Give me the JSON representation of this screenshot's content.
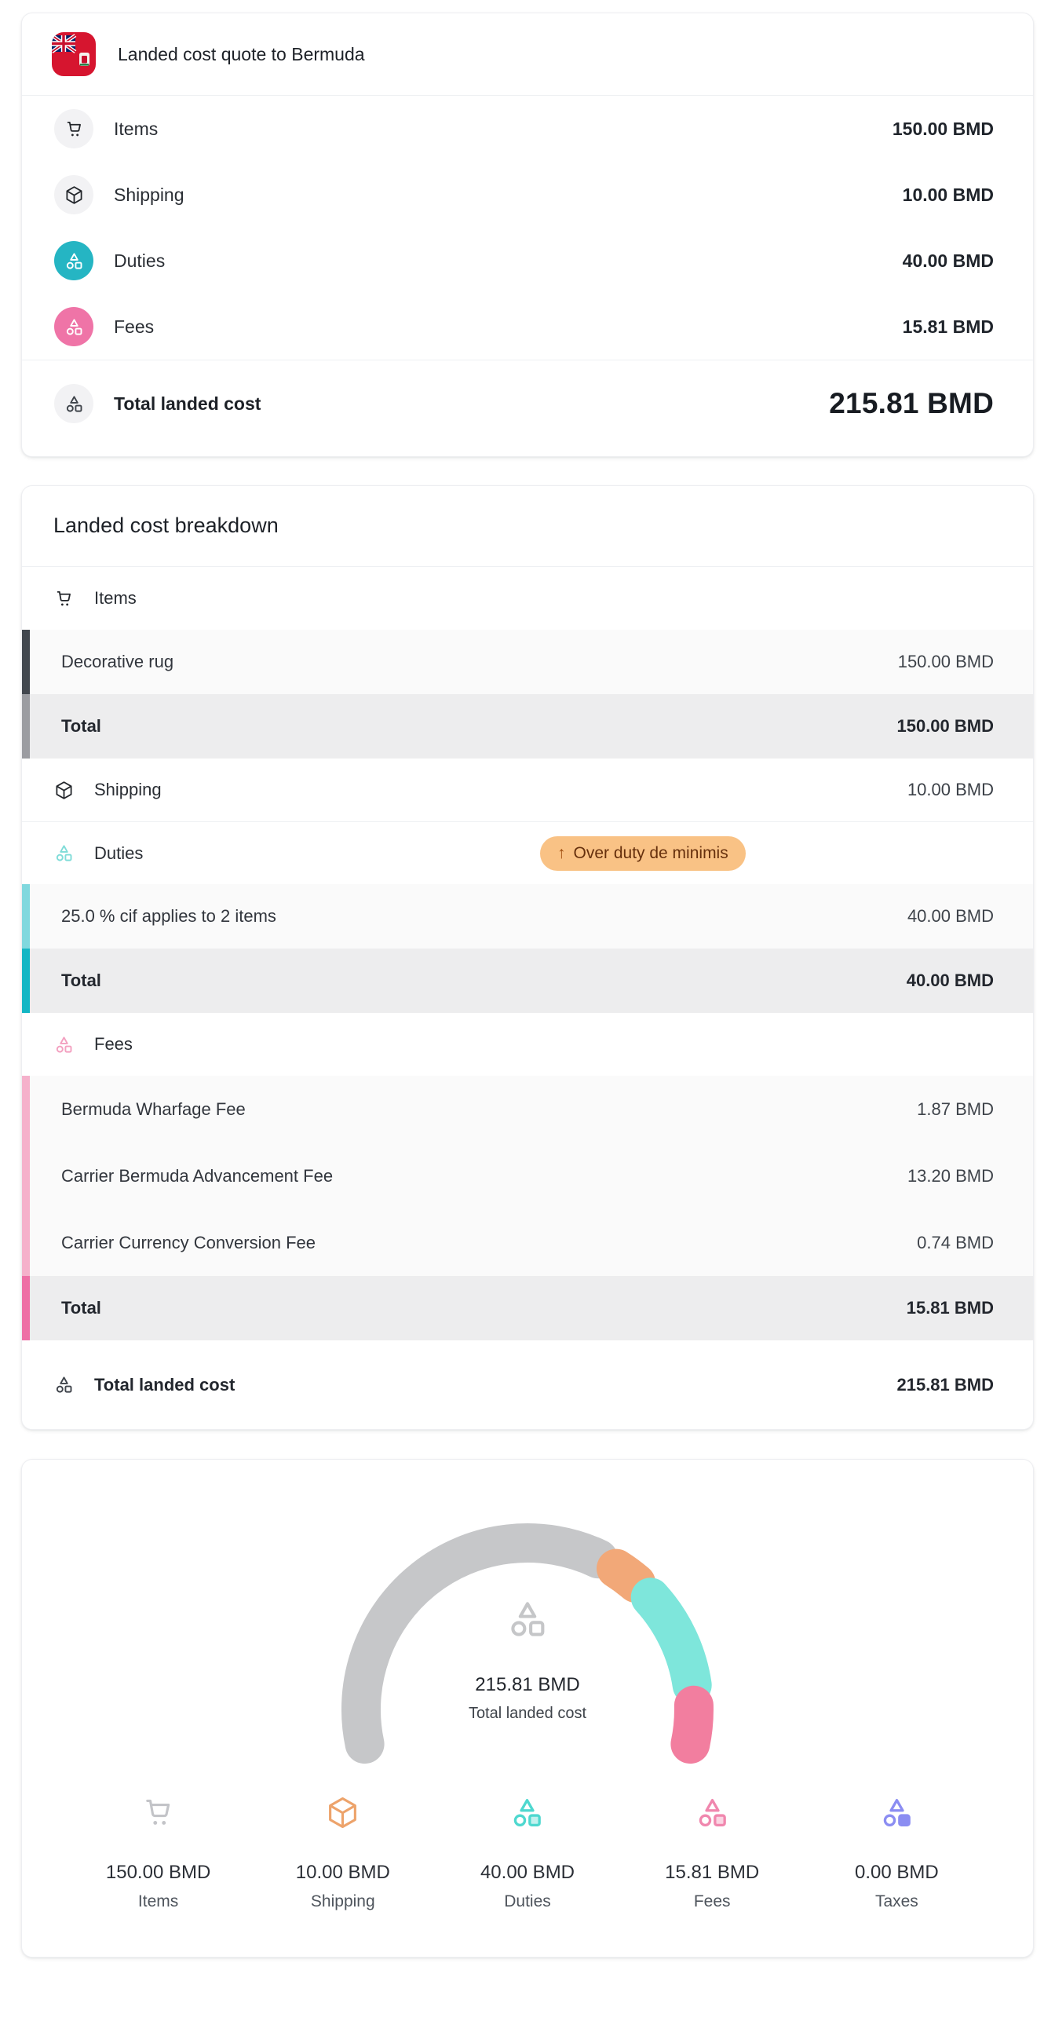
{
  "colors": {
    "items_dark": "#42474e",
    "items_gray": "#9b9ca1",
    "duties_accent": "#14b6c4",
    "duties_light": "#80d8de",
    "duties_icon_bg": "#25b5c3",
    "duties_icon_outline": "#7fdcd8",
    "fees_accent": "#ee6fa5",
    "fees_light": "#f5b1cb",
    "fees_icon_bg": "#ef74a7",
    "fees_icon_outline": "#f3a0c0",
    "badge_bg": "#f9c285",
    "badge_text": "#66300d",
    "badge_arrow": "#a14e10",
    "gauge_glyph": "#c5c6c8"
  },
  "quote_card": {
    "title": "Landed cost quote to Bermuda",
    "rows": [
      {
        "label": "Items",
        "value": "150.00 BMD"
      },
      {
        "label": "Shipping",
        "value": "10.00 BMD"
      },
      {
        "label": "Duties",
        "value": "40.00 BMD"
      },
      {
        "label": "Fees",
        "value": "15.81 BMD"
      }
    ],
    "total_label": "Total landed cost",
    "total_value": "215.81 BMD"
  },
  "breakdown_card": {
    "title": "Landed cost breakdown",
    "items_section": {
      "header": "Items",
      "rows": [
        {
          "label": "Decorative rug",
          "value": "150.00 BMD"
        }
      ],
      "total_label": "Total",
      "total_value": "150.00 BMD"
    },
    "shipping_row": {
      "label": "Shipping",
      "value": "10.00 BMD"
    },
    "duties_section": {
      "header": "Duties",
      "badge_arrow": "↑",
      "badge_label": "Over duty de minimis",
      "rows": [
        {
          "label": "25.0 % cif applies to 2 items",
          "value": "40.00 BMD"
        }
      ],
      "total_label": "Total",
      "total_value": "40.00 BMD"
    },
    "fees_section": {
      "header": "Fees",
      "rows": [
        {
          "label": "Bermuda Wharfage Fee",
          "value": "1.87 BMD"
        },
        {
          "label": "Carrier Bermuda Advancement Fee",
          "value": "13.20 BMD"
        },
        {
          "label": "Carrier Currency Conversion Fee",
          "value": "0.74 BMD"
        }
      ],
      "total_label": "Total",
      "total_value": "15.81 BMD"
    },
    "total_label": "Total landed cost",
    "total_value": "215.81 BMD"
  },
  "chart_card": {
    "center_value": "215.81 BMD",
    "center_label": "Total landed cost",
    "legend": [
      {
        "value": "150.00 BMD",
        "label": "Items",
        "color": "#c3c4c8"
      },
      {
        "value": "10.00 BMD",
        "label": "Shipping",
        "color": "#eda36b"
      },
      {
        "value": "40.00 BMD",
        "label": "Duties",
        "color": "#4ed8cf"
      },
      {
        "value": "15.81 BMD",
        "label": "Fees",
        "color": "#f087ae"
      },
      {
        "value": "0.00 BMD",
        "label": "Taxes",
        "color": "#8b8df2"
      }
    ]
  },
  "chart_data": {
    "type": "pie",
    "subtype": "segmented-gauge-donut",
    "title": "Total landed cost",
    "center_value": "215.81 BMD",
    "units": "BMD",
    "categories": [
      "Items",
      "Shipping",
      "Duties",
      "Fees",
      "Taxes"
    ],
    "values": [
      150.0,
      10.0,
      40.0,
      15.81,
      0.0
    ],
    "colors": [
      "#c6c7c9",
      "#f2a878",
      "#7ee6db",
      "#f27e9f",
      "#8b8df2"
    ],
    "total": 215.81,
    "start_angle_deg": 192,
    "end_angle_deg": -12,
    "gap_deg": 7,
    "legend_position": "bottom"
  }
}
